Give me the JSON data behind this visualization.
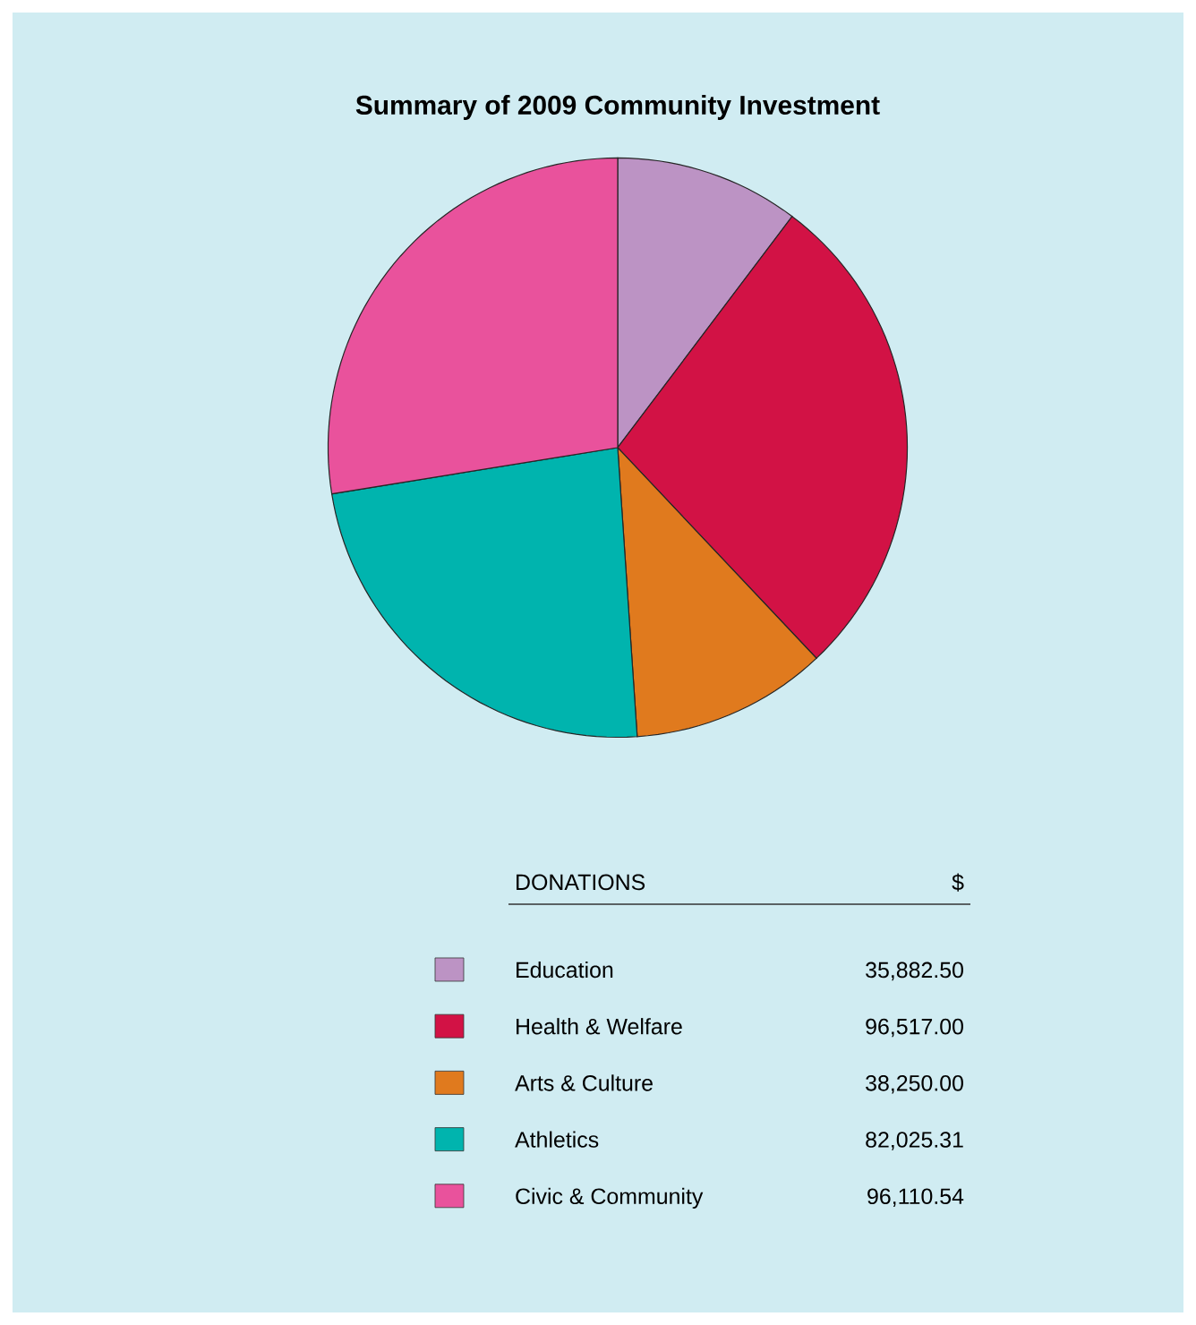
{
  "chart_data": {
    "type": "pie",
    "title": "Summary of 2009 Community Investment",
    "categories": [
      "Education",
      "Health & Welfare",
      "Arts & Culture",
      "Athletics",
      "Civic & Community"
    ],
    "values": [
      35882.5,
      96517.0,
      38250.0,
      82025.31,
      96110.54
    ],
    "value_labels": [
      "35,882.50",
      "96,517.00",
      "38,250.00",
      "82,025.31",
      "96,110.54"
    ],
    "colors": [
      "#bc93c4",
      "#d21245",
      "#e07a1e",
      "#00b4ae",
      "#e9529c"
    ],
    "legend": "bottom",
    "legend_title": "DONATIONS",
    "annotations": [
      "$"
    ]
  }
}
